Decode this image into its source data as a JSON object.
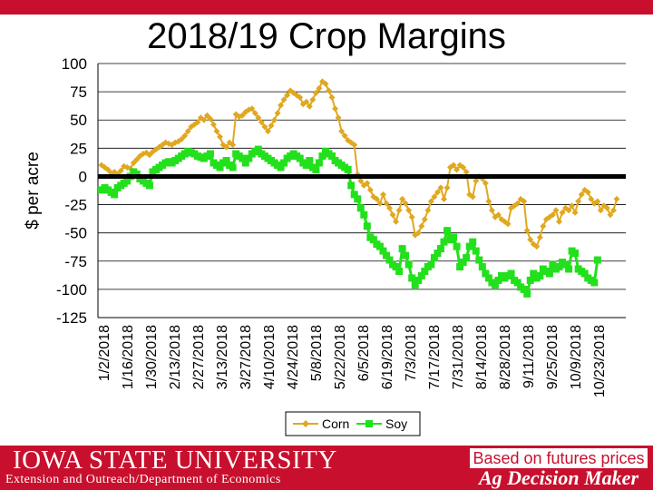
{
  "footer": {
    "university": "IOWA STATE UNIVERSITY",
    "department": "Extension and Outreach/Department of Economics",
    "note": "Based on futures prices",
    "brand": "Ag Decision Maker"
  },
  "chart_data": {
    "type": "line",
    "title": "2018/19 Crop Margins",
    "ylabel": "$ per acre",
    "xlabel": "",
    "ylim": [
      -125,
      100
    ],
    "yticks": [
      100,
      75,
      50,
      25,
      0,
      -25,
      -50,
      -75,
      -100,
      -125
    ],
    "xtick_labels": [
      "1/2/2018",
      "1/16/2018",
      "1/30/2018",
      "2/13/2018",
      "2/27/2018",
      "3/13/2018",
      "3/27/2018",
      "4/10/2018",
      "4/24/2018",
      "5/8/2018",
      "5/22/2018",
      "6/5/2018",
      "6/19/2018",
      "7/3/2018",
      "7/17/2018",
      "7/31/2018",
      "8/14/2018",
      "8/28/2018",
      "9/11/2018",
      "9/25/2018",
      "10/9/2018",
      "10/23/2018"
    ],
    "legend": "bottom",
    "grid": true,
    "series": [
      {
        "name": "Corn",
        "color": "#e0a820",
        "values": [
          10,
          8,
          6,
          3,
          4,
          2,
          5,
          9,
          8,
          7,
          12,
          15,
          18,
          20,
          21,
          19,
          22,
          24,
          26,
          28,
          30,
          29,
          28,
          30,
          31,
          33,
          36,
          40,
          44,
          46,
          48,
          52,
          50,
          54,
          51,
          46,
          40,
          35,
          28,
          26,
          30,
          28,
          55,
          53,
          54,
          57,
          59,
          60,
          56,
          52,
          48,
          44,
          40,
          45,
          50,
          56,
          63,
          68,
          72,
          76,
          74,
          72,
          70,
          64,
          66,
          62,
          68,
          74,
          78,
          84,
          82,
          76,
          70,
          60,
          52,
          40,
          36,
          32,
          30,
          28,
          2,
          -4,
          -8,
          -6,
          -12,
          -18,
          -20,
          -24,
          -16,
          -24,
          -28,
          -34,
          -40,
          -30,
          -20,
          -24,
          -30,
          -36,
          -52,
          -50,
          -44,
          -38,
          -30,
          -22,
          -18,
          -14,
          -10,
          -20,
          -10,
          8,
          10,
          6,
          10,
          8,
          4,
          -16,
          -18,
          -4,
          0,
          -2,
          -6,
          -22,
          -30,
          -36,
          -34,
          -38,
          -40,
          -42,
          -28,
          -26,
          -24,
          -20,
          -22,
          -48,
          -56,
          -60,
          -62,
          -54,
          -44,
          -38,
          -36,
          -34,
          -30,
          -40,
          -32,
          -28,
          -30,
          -26,
          -32,
          -22,
          -16,
          -12,
          -14,
          -20,
          -24,
          -22,
          -30,
          -26,
          -28,
          -34,
          -30,
          -20
        ]
      },
      {
        "name": "Soy",
        "color": "#22e01c",
        "values": [
          -12,
          -10,
          -12,
          -14,
          -16,
          -10,
          -8,
          -6,
          -4,
          0,
          4,
          2,
          -2,
          -4,
          -6,
          -8,
          4,
          6,
          8,
          10,
          12,
          13,
          12,
          14,
          16,
          18,
          20,
          22,
          21,
          20,
          18,
          17,
          16,
          18,
          20,
          12,
          10,
          8,
          12,
          14,
          10,
          8,
          20,
          18,
          16,
          12,
          16,
          20,
          22,
          24,
          20,
          18,
          16,
          14,
          12,
          10,
          8,
          12,
          16,
          18,
          20,
          18,
          16,
          12,
          10,
          14,
          8,
          6,
          12,
          18,
          22,
          20,
          18,
          14,
          12,
          10,
          8,
          6,
          -8,
          -16,
          -20,
          -28,
          -34,
          -44,
          -54,
          -56,
          -60,
          -62,
          -66,
          -70,
          -74,
          -78,
          -80,
          -84,
          -64,
          -70,
          -78,
          -90,
          -96,
          -92,
          -88,
          -84,
          -80,
          -78,
          -72,
          -68,
          -64,
          -58,
          -48,
          -56,
          -54,
          -62,
          -80,
          -76,
          -72,
          -62,
          -58,
          -66,
          -74,
          -80,
          -86,
          -90,
          -94,
          -96,
          -92,
          -88,
          -90,
          -88,
          -86,
          -92,
          -94,
          -98,
          -100,
          -104,
          -92,
          -86,
          -90,
          -88,
          -82,
          -84,
          -86,
          -78,
          -82,
          -80,
          -76,
          -78,
          -82,
          -66,
          -68,
          -82,
          -84,
          -86,
          -90,
          -92,
          -94,
          -74
        ]
      }
    ]
  }
}
